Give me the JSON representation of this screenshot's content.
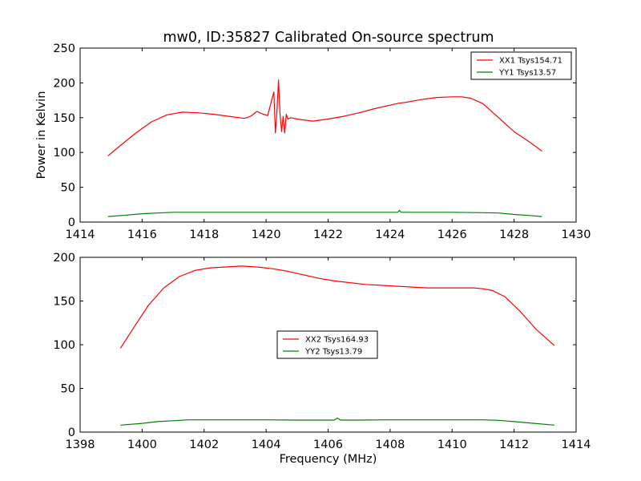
{
  "figure": {
    "title": "mw0, ID:35827 Calibrated On-source spectrum"
  },
  "chart_data": [
    {
      "type": "line",
      "title": "mw0, ID:35827 Calibrated On-source spectrum",
      "xlabel": "",
      "ylabel": "Power in Kelvin",
      "xlim": [
        1414,
        1430
      ],
      "ylim": [
        0,
        250
      ],
      "xticks": [
        "1414",
        "1416",
        "1418",
        "1420",
        "1422",
        "1424",
        "1426",
        "1428",
        "1430"
      ],
      "yticks": [
        "0",
        "50",
        "100",
        "150",
        "200",
        "250"
      ],
      "grid": false,
      "legend_position": "top-right",
      "series": [
        {
          "name": "XX1 Tsys154.71",
          "color": "#ff0000",
          "x": [
            1414.9,
            1415.3,
            1415.8,
            1416.3,
            1416.8,
            1417.3,
            1417.8,
            1418.3,
            1418.8,
            1419.3,
            1419.5,
            1419.7,
            1419.9,
            1420.05,
            1420.15,
            1420.25,
            1420.3,
            1420.35,
            1420.4,
            1420.45,
            1420.5,
            1420.55,
            1420.6,
            1420.65,
            1420.7,
            1420.8,
            1421.0,
            1421.5,
            1422.0,
            1422.5,
            1423.0,
            1423.5,
            1424.0,
            1424.3,
            1424.5,
            1425.0,
            1425.5,
            1426.0,
            1426.3,
            1426.6,
            1427.0,
            1427.5,
            1428.0,
            1428.5,
            1428.9
          ],
          "values": [
            95,
            110,
            128,
            144,
            154,
            158,
            157,
            155,
            152,
            149,
            152,
            159,
            155,
            153,
            170,
            187,
            128,
            160,
            204,
            155,
            130,
            152,
            128,
            155,
            148,
            150,
            148,
            145,
            148,
            152,
            157,
            163,
            168,
            171,
            172,
            176,
            179,
            180,
            180,
            178,
            170,
            150,
            130,
            115,
            102
          ]
        },
        {
          "name": "YY1 Tsys13.57",
          "color": "#008000",
          "x": [
            1414.9,
            1415.5,
            1416.0,
            1416.5,
            1417.0,
            1418.0,
            1419.0,
            1420.0,
            1421.0,
            1422.0,
            1423.0,
            1424.0,
            1424.25,
            1424.3,
            1424.35,
            1425.0,
            1426.0,
            1427.0,
            1427.5,
            1428.0,
            1428.5,
            1428.9
          ],
          "values": [
            8,
            10,
            12,
            13,
            14,
            14,
            14,
            14,
            14,
            14,
            14,
            14,
            14,
            17,
            14,
            14,
            14,
            13.5,
            13,
            11,
            9.5,
            8
          ]
        }
      ]
    },
    {
      "type": "line",
      "title": "",
      "xlabel": "Frequency (MHz)",
      "ylabel": "",
      "xlim": [
        1398,
        1414
      ],
      "ylim": [
        0,
        200
      ],
      "xticks": [
        "1398",
        "1400",
        "1402",
        "1404",
        "1406",
        "1408",
        "1410",
        "1412",
        "1414"
      ],
      "yticks": [
        "0",
        "50",
        "100",
        "150",
        "200"
      ],
      "grid": false,
      "legend_position": "center",
      "series": [
        {
          "name": "XX2 Tsys164.93",
          "color": "#ff0000",
          "x": [
            1399.3,
            1399.7,
            1400.2,
            1400.7,
            1401.2,
            1401.7,
            1402.2,
            1402.7,
            1403.2,
            1403.7,
            1404.2,
            1404.7,
            1405.2,
            1405.7,
            1406.2,
            1406.7,
            1407.2,
            1407.7,
            1408.2,
            1408.7,
            1409.2,
            1409.7,
            1410.2,
            1410.7,
            1411.0,
            1411.3,
            1411.7,
            1412.2,
            1412.7,
            1413.3
          ],
          "values": [
            96,
            118,
            145,
            165,
            178,
            185,
            188,
            189,
            190,
            189,
            187,
            184,
            180,
            176,
            173,
            171,
            169,
            168,
            167,
            166,
            165,
            165,
            165,
            165,
            164,
            162,
            155,
            138,
            118,
            99
          ]
        },
        {
          "name": "YY2 Tsys13.79",
          "color": "#008000",
          "x": [
            1399.3,
            1400.0,
            1400.5,
            1401.0,
            1401.5,
            1402.0,
            1403.0,
            1404.0,
            1405.0,
            1406.0,
            1406.2,
            1406.3,
            1406.4,
            1407.0,
            1408.0,
            1409.0,
            1410.0,
            1411.0,
            1411.5,
            1412.0,
            1412.5,
            1413.3
          ],
          "values": [
            8,
            10,
            12,
            13,
            14,
            14,
            14,
            14,
            13.8,
            13.8,
            13.8,
            16,
            13.8,
            13.8,
            14,
            14,
            14,
            14,
            13.5,
            12,
            10.5,
            8
          ]
        }
      ]
    }
  ]
}
